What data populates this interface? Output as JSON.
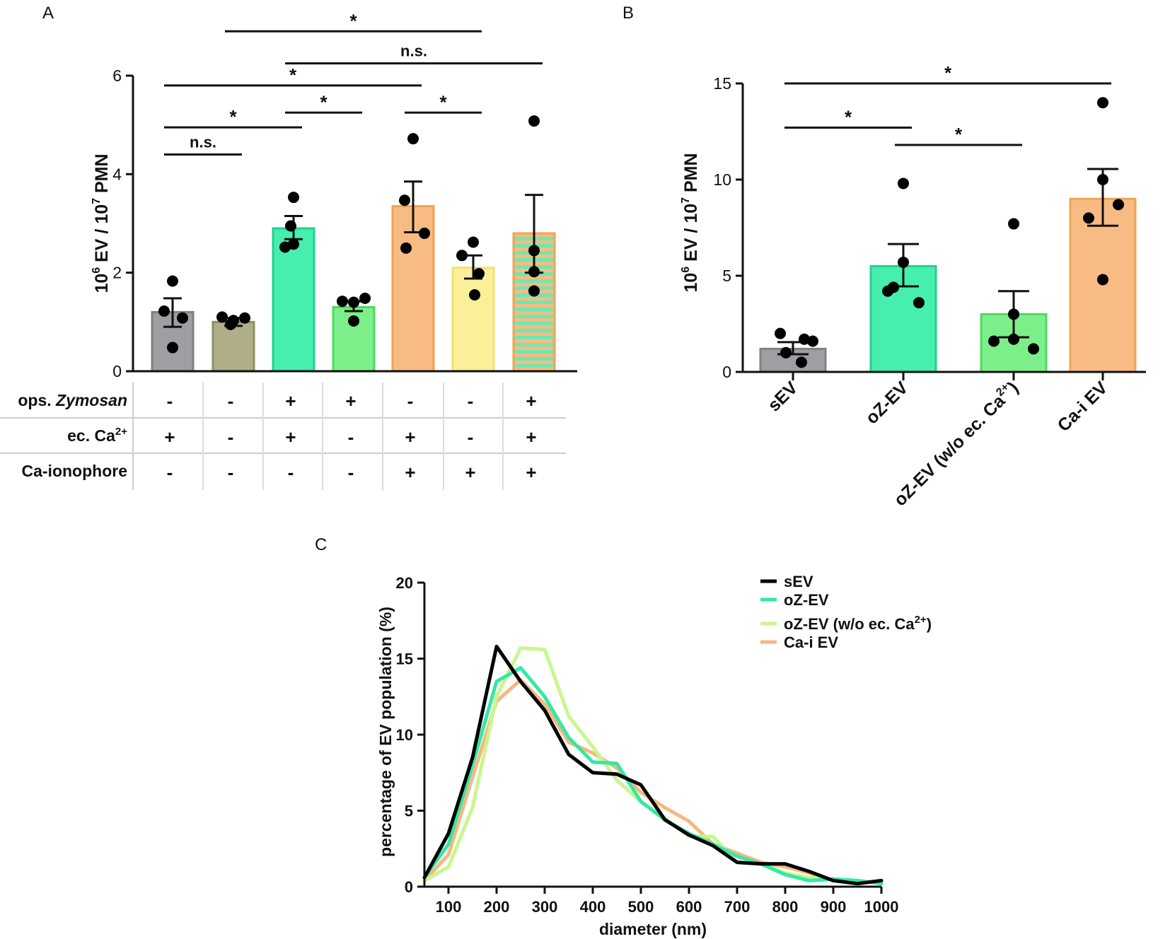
{
  "panel_labels": {
    "a": "A",
    "b": "B",
    "c": "C"
  },
  "colors": {
    "grey": "#9e9ea3",
    "grey_edge": "#808085",
    "olive": "#afae88",
    "olive_edge": "#8e8d66",
    "teal": "#46efae",
    "teal_edge": "#25d08f",
    "green": "#7def8a",
    "green_edge": "#4fd860",
    "orange": "#f7bb83",
    "orange_edge": "#f2a350",
    "yellow": "#fbf09a",
    "yellow_edge": "#f2e071",
    "stripe_a": "#f7bb83",
    "stripe_b": "#6ee8b0",
    "line_sEV": "#000000",
    "line_oZ": "#34e8a4",
    "line_oZ_noCa": "#c8f78e",
    "line_Cai": "#f6b880"
  },
  "chart_data": [
    {
      "id": "A",
      "type": "bar",
      "ylabel_base": "10",
      "ylabel_exp1": "6",
      "ylabel_mid": " EV / 10",
      "ylabel_exp2": "7",
      "ylabel_end": " PMN",
      "ylim": [
        0,
        6
      ],
      "yticks": [
        0,
        2,
        4,
        6
      ],
      "bars": [
        {
          "mean": 1.2,
          "err": [
            0.9,
            1.48
          ],
          "points": [
            1.83,
            1.22,
            1.08,
            0.48
          ],
          "color": "grey",
          "edge": "grey_edge"
        },
        {
          "mean": 1.0,
          "err": [
            0.92,
            1.08
          ],
          "points": [
            1.1,
            1.03,
            1.08,
            0.95
          ],
          "color": "olive",
          "edge": "olive_edge"
        },
        {
          "mean": 2.9,
          "err": [
            2.68,
            3.15
          ],
          "points": [
            3.53,
            2.95,
            2.58,
            2.52
          ],
          "color": "teal",
          "edge": "teal_edge"
        },
        {
          "mean": 1.3,
          "err": [
            1.22,
            1.42
          ],
          "points": [
            1.42,
            1.4,
            1.48,
            1.02
          ],
          "color": "green",
          "edge": "green_edge"
        },
        {
          "mean": 3.35,
          "err": [
            2.82,
            3.85
          ],
          "points": [
            4.72,
            3.47,
            2.8,
            2.5
          ],
          "color": "orange",
          "edge": "orange_edge"
        },
        {
          "mean": 2.1,
          "err": [
            1.88,
            2.35
          ],
          "points": [
            2.62,
            2.35,
            1.98,
            1.55
          ],
          "color": "yellow",
          "edge": "yellow_edge"
        },
        {
          "mean": 2.8,
          "err": [
            2.0,
            3.58
          ],
          "points": [
            5.08,
            2.45,
            2.02,
            1.63
          ],
          "color": "stripe",
          "edge": "orange_edge"
        }
      ],
      "significance": [
        {
          "from": 0,
          "to": 1,
          "level": 4.4,
          "label": "n.s."
        },
        {
          "from": 0,
          "to": 2,
          "level": 4.95,
          "label": "*"
        },
        {
          "from": 2,
          "to": 3,
          "level": 5.25,
          "label": "*"
        },
        {
          "from": 4,
          "to": 5,
          "level": 5.25,
          "label": "*"
        },
        {
          "from": 0,
          "to": 4,
          "level": 5.8,
          "label": "*"
        },
        {
          "from": 2,
          "to": 6,
          "level": 6.25,
          "label": "n.s."
        },
        {
          "from": 1,
          "to": 5,
          "level": 6.9,
          "label": "*"
        }
      ],
      "table": {
        "rows": [
          {
            "label_plain": "ops. ",
            "label_italic": "Zymosan",
            "values": [
              "-",
              "-",
              "+",
              "+",
              "-",
              "-",
              "+"
            ]
          },
          {
            "label_plain": "ec. Ca",
            "label_sup": "2+",
            "values": [
              "+",
              "-",
              "+",
              "-",
              "+",
              "-",
              "+"
            ]
          },
          {
            "label_plain": "Ca-ionophore",
            "values": [
              "-",
              "-",
              "-",
              "-",
              "+",
              "+",
              "+"
            ]
          }
        ]
      }
    },
    {
      "id": "B",
      "type": "bar",
      "ylabel_base": "10",
      "ylabel_exp1": "6",
      "ylabel_mid": " EV / 10",
      "ylabel_exp2": "7",
      "ylabel_end": " PMN",
      "ylim": [
        0,
        15
      ],
      "yticks": [
        0,
        5,
        10,
        15
      ],
      "categories": [
        "sEV",
        "oZ-EV",
        "oZ-EV (w/o ec. Ca",
        "Ca-i EV"
      ],
      "category_sup": "2+",
      "category_tail": ")",
      "bars": [
        {
          "mean": 1.2,
          "err": [
            0.92,
            1.55
          ],
          "points": [
            2.0,
            1.7,
            1.6,
            1.0,
            0.5
          ],
          "color": "grey",
          "edge": "grey_edge"
        },
        {
          "mean": 5.5,
          "err": [
            4.45,
            6.65
          ],
          "points": [
            9.8,
            5.7,
            4.4,
            4.2,
            3.6
          ],
          "color": "teal",
          "edge": "teal_edge"
        },
        {
          "mean": 3.0,
          "err": [
            1.8,
            4.2
          ],
          "points": [
            7.7,
            3.0,
            1.6,
            1.7,
            1.2
          ],
          "color": "green",
          "edge": "green_edge"
        },
        {
          "mean": 9.0,
          "err": [
            7.6,
            10.55
          ],
          "points": [
            14.0,
            10.0,
            8.7,
            8.0,
            4.8
          ],
          "color": "orange",
          "edge": "orange_edge"
        }
      ],
      "significance": [
        {
          "from": 0,
          "to": 1,
          "level": 12.7,
          "label": "*"
        },
        {
          "from": 1,
          "to": 2,
          "level": 11.8,
          "label": "*"
        },
        {
          "from": 0,
          "to": 3,
          "level": 15.0,
          "label": "*"
        }
      ]
    },
    {
      "id": "C",
      "type": "line",
      "xlabel": "diameter (nm)",
      "ylabel": "percentage of EV population (%)",
      "xlim": [
        50,
        1000
      ],
      "ylim": [
        0,
        20
      ],
      "xticks": [
        100,
        200,
        300,
        400,
        500,
        600,
        700,
        800,
        900,
        1000
      ],
      "yticks": [
        0,
        5,
        10,
        15,
        20
      ],
      "x": [
        50,
        100,
        150,
        200,
        250,
        300,
        350,
        400,
        450,
        500,
        550,
        600,
        650,
        700,
        750,
        800,
        850,
        900,
        950,
        1000
      ],
      "series": [
        {
          "name": "Ca-i EV",
          "color": "line_Cai",
          "values": [
            0.4,
            2.1,
            7.2,
            12.2,
            13.6,
            12.0,
            9.5,
            8.8,
            7.8,
            6.2,
            5.2,
            4.3,
            2.8,
            2.2,
            1.6,
            1.3,
            0.9,
            0.4,
            0.3,
            0.3
          ]
        },
        {
          "name": "oZ-EV (w/o ec. Ca",
          "name_sup": "2+",
          "name_tail": ")",
          "color": "line_oZ_noCa",
          "values": [
            0.4,
            1.3,
            5.2,
            12.5,
            15.7,
            15.6,
            11.2,
            9.2,
            7.0,
            5.6,
            4.5,
            3.3,
            3.3,
            1.6,
            1.5,
            0.9,
            0.6,
            0.5,
            0.4,
            0.2
          ]
        },
        {
          "name": "oZ-EV",
          "color": "line_oZ",
          "values": [
            0.6,
            2.8,
            8.0,
            13.5,
            14.4,
            12.5,
            9.8,
            8.2,
            8.1,
            5.6,
            4.4,
            3.5,
            2.8,
            2.0,
            1.5,
            0.8,
            0.4,
            0.5,
            0.4,
            0.2
          ]
        },
        {
          "name": "sEV",
          "color": "line_sEV",
          "values": [
            0.6,
            3.5,
            8.5,
            15.8,
            13.5,
            11.6,
            8.7,
            7.5,
            7.4,
            6.7,
            4.4,
            3.4,
            2.7,
            1.6,
            1.5,
            1.5,
            1.0,
            0.4,
            0.2,
            0.4
          ]
        }
      ],
      "legend_order": [
        "sEV",
        "oZ-EV",
        "oZ-EV (w/o ec. Ca",
        "Ca-i EV"
      ]
    }
  ]
}
